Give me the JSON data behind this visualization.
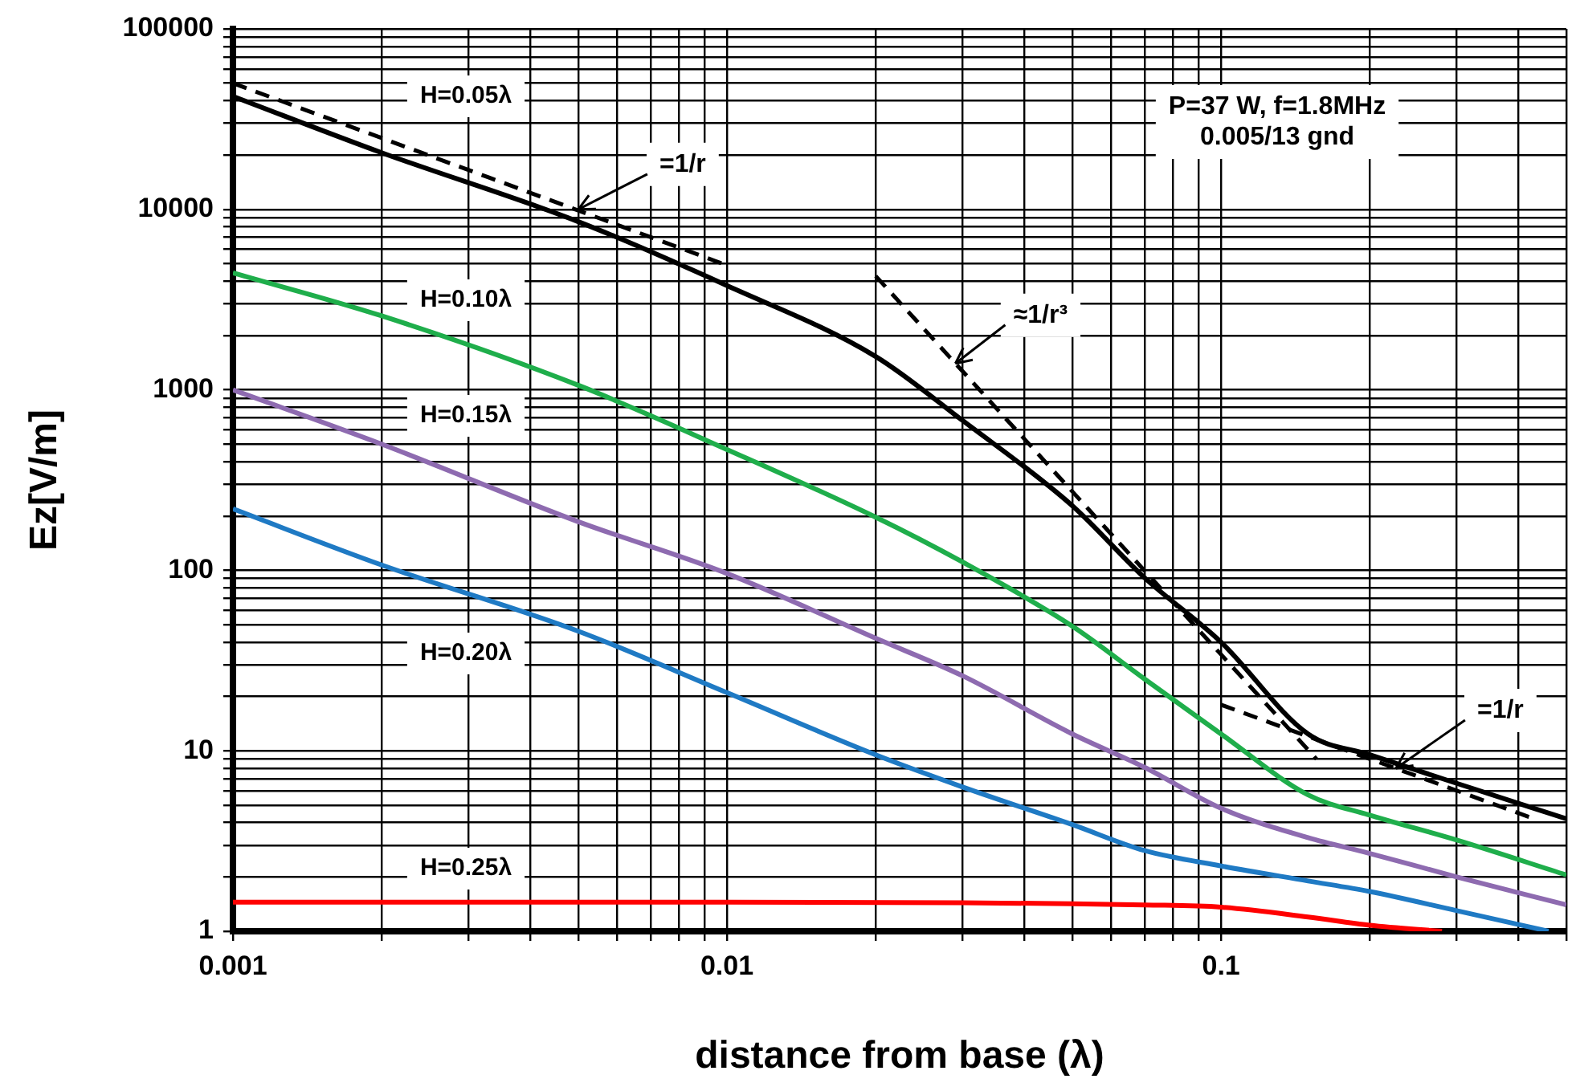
{
  "chart_data": {
    "type": "line",
    "xlabel": "distance from base (λ)",
    "ylabel": "Ez[V/m]",
    "log": "xy",
    "grid": true,
    "xlim": [
      0.001,
      0.5
    ],
    "ylim": [
      1,
      100000
    ],
    "xticks": [
      0.001,
      {
        "value": 0.002,
        "label": null
      },
      {
        "value": 0.003,
        "label": null
      },
      {
        "value": 0.004,
        "label": null
      },
      {
        "value": 0.005,
        "label": null
      },
      {
        "value": 0.006,
        "label": null
      },
      {
        "value": 0.007,
        "label": null
      },
      {
        "value": 0.008,
        "label": null
      },
      {
        "value": 0.009,
        "label": null
      },
      0.01,
      {
        "value": 0.02,
        "label": null
      },
      {
        "value": 0.03,
        "label": null
      },
      {
        "value": 0.04,
        "label": null
      },
      {
        "value": 0.05,
        "label": null
      },
      {
        "value": 0.06,
        "label": null
      },
      {
        "value": 0.07,
        "label": null
      },
      {
        "value": 0.08,
        "label": null
      },
      {
        "value": 0.09,
        "label": null
      },
      0.1,
      {
        "value": 0.2,
        "label": null
      },
      {
        "value": 0.3,
        "label": null
      },
      {
        "value": 0.4,
        "label": null
      },
      {
        "value": 0.5,
        "label": null
      }
    ],
    "yticks": [
      1,
      {
        "value": 2,
        "label": null
      },
      {
        "value": 3,
        "label": null
      },
      {
        "value": 4,
        "label": null
      },
      {
        "value": 5,
        "label": null
      },
      {
        "value": 6,
        "label": null
      },
      {
        "value": 7,
        "label": null
      },
      {
        "value": 8,
        "label": null
      },
      {
        "value": 9,
        "label": null
      },
      10,
      {
        "value": 20,
        "label": null
      },
      {
        "value": 30,
        "label": null
      },
      {
        "value": 40,
        "label": null
      },
      {
        "value": 50,
        "label": null
      },
      {
        "value": 60,
        "label": null
      },
      {
        "value": 70,
        "label": null
      },
      {
        "value": 80,
        "label": null
      },
      {
        "value": 90,
        "label": null
      },
      100,
      {
        "value": 200,
        "label": null
      },
      {
        "value": 300,
        "label": null
      },
      {
        "value": 400,
        "label": null
      },
      {
        "value": 500,
        "label": null
      },
      {
        "value": 600,
        "label": null
      },
      {
        "value": 700,
        "label": null
      },
      {
        "value": 800,
        "label": null
      },
      {
        "value": 900,
        "label": null
      },
      1000,
      {
        "value": 2000,
        "label": null
      },
      {
        "value": 3000,
        "label": null
      },
      {
        "value": 4000,
        "label": null
      },
      {
        "value": 5000,
        "label": null
      },
      {
        "value": 6000,
        "label": null
      },
      {
        "value": 7000,
        "label": null
      },
      {
        "value": 8000,
        "label": null
      },
      {
        "value": 9000,
        "label": null
      },
      10000,
      {
        "value": 20000,
        "label": null
      },
      {
        "value": 30000,
        "label": null
      },
      {
        "value": 40000,
        "label": null
      },
      {
        "value": 50000,
        "label": null
      },
      {
        "value": 60000,
        "label": null
      },
      {
        "value": 70000,
        "label": null
      },
      {
        "value": 80000,
        "label": null
      },
      {
        "value": 90000,
        "label": null
      },
      100000
    ],
    "series": [
      {
        "name": "H=0.05λ",
        "color": "#000000",
        "x": [
          0.001,
          0.002,
          0.005,
          0.01,
          0.02,
          0.03,
          0.05,
          0.07,
          0.1,
          0.15,
          0.2,
          0.3,
          0.5
        ],
        "values": [
          42300,
          20600,
          8550,
          3780,
          1530,
          675,
          228,
          91,
          40,
          12.4,
          9.5,
          6.6,
          4.2
        ]
      },
      {
        "name": "H=0.10λ",
        "color": "#1fae4b",
        "x": [
          0.001,
          0.002,
          0.005,
          0.01,
          0.02,
          0.03,
          0.05,
          0.07,
          0.1,
          0.15,
          0.2,
          0.3,
          0.5
        ],
        "values": [
          4450,
          2570,
          1060,
          467,
          197,
          111,
          49,
          25,
          12.4,
          5.7,
          4.4,
          3.2,
          2.05
        ]
      },
      {
        "name": "H=0.15λ",
        "color": "#8e6bb0",
        "x": [
          0.001,
          0.002,
          0.005,
          0.01,
          0.02,
          0.03,
          0.05,
          0.07,
          0.1,
          0.15,
          0.2,
          0.3,
          0.5
        ],
        "values": [
          1000,
          500,
          186,
          96,
          42,
          26,
          12.4,
          8.1,
          4.8,
          3.3,
          2.7,
          2.0,
          1.4
        ]
      },
      {
        "name": "H=0.20λ",
        "color": "#1f7ac4",
        "x": [
          0.001,
          0.002,
          0.005,
          0.01,
          0.02,
          0.03,
          0.05,
          0.07,
          0.1,
          0.15,
          0.2,
          0.3,
          0.46
        ],
        "values": [
          219,
          107,
          46,
          21,
          9.5,
          6.3,
          3.9,
          2.8,
          2.3,
          1.9,
          1.66,
          1.3,
          1.0
        ]
      },
      {
        "name": "H=0.25λ",
        "color": "#ff0000",
        "x": [
          0.001,
          0.01,
          0.03,
          0.05,
          0.07,
          0.1,
          0.15,
          0.2,
          0.28
        ],
        "values": [
          1.45,
          1.45,
          1.44,
          1.42,
          1.4,
          1.36,
          1.2,
          1.08,
          1.0
        ]
      },
      {
        "color": "#000000",
        "line_style": "dashed",
        "x": [
          0.001,
          0.01
        ],
        "values": [
          50000,
          4900
        ]
      },
      {
        "color": "#000000",
        "line_style": "dashed",
        "x": [
          0.02,
          0.156
        ],
        "values": [
          4270,
          9
        ]
      },
      {
        "color": "#000000",
        "line_style": "dashed",
        "x": [
          0.1,
          0.43
        ],
        "values": [
          18,
          4.2
        ]
      }
    ],
    "annotations": [
      {
        "text": "=1/r",
        "x": 0.005,
        "y": 10000
      },
      {
        "text": "≈1/r³",
        "x": 0.029,
        "y": 1400
      },
      {
        "text": "=1/r",
        "x": 0.226,
        "y": 8
      },
      "P=37 W, f=1.8MHz\n0.005/13 gnd"
    ]
  }
}
